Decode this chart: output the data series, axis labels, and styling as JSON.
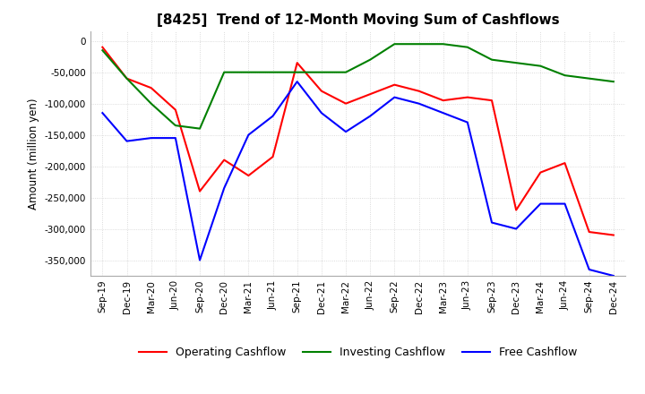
{
  "title": "[8425]  Trend of 12-Month Moving Sum of Cashflows",
  "ylabel": "Amount (million yen)",
  "ylim": [
    -375000,
    15000
  ],
  "yticks": [
    0,
    -50000,
    -100000,
    -150000,
    -200000,
    -250000,
    -300000,
    -350000
  ],
  "x_labels": [
    "Sep-19",
    "Dec-19",
    "Mar-20",
    "Jun-20",
    "Sep-20",
    "Dec-20",
    "Mar-21",
    "Jun-21",
    "Sep-21",
    "Dec-21",
    "Mar-22",
    "Jun-22",
    "Sep-22",
    "Dec-22",
    "Mar-23",
    "Jun-23",
    "Sep-23",
    "Dec-23",
    "Mar-24",
    "Jun-24",
    "Sep-24",
    "Dec-24"
  ],
  "operating_cashflow": [
    -10000,
    -60000,
    -75000,
    -110000,
    -240000,
    -190000,
    -215000,
    -185000,
    -35000,
    -80000,
    -100000,
    -85000,
    -70000,
    -80000,
    -95000,
    -90000,
    -95000,
    -270000,
    -210000,
    -195000,
    -305000,
    -310000
  ],
  "investing_cashflow": [
    -15000,
    -60000,
    -100000,
    -135000,
    -140000,
    -50000,
    -50000,
    -50000,
    -50000,
    -50000,
    -50000,
    -30000,
    -5000,
    -5000,
    -5000,
    -10000,
    -30000,
    -35000,
    -40000,
    -55000,
    -60000,
    -65000
  ],
  "free_cashflow": [
    -115000,
    -160000,
    -155000,
    -155000,
    -350000,
    -235000,
    -150000,
    -120000,
    -65000,
    -115000,
    -145000,
    -120000,
    -90000,
    -100000,
    -115000,
    -130000,
    -290000,
    -300000,
    -260000,
    -260000,
    -365000,
    -375000
  ],
  "operating_color": "#ff0000",
  "investing_color": "#008000",
  "free_color": "#0000ff",
  "background_color": "#ffffff",
  "grid_color": "#d0d0d0",
  "title_fontsize": 11,
  "tick_fontsize": 7.5,
  "legend_fontsize": 9
}
